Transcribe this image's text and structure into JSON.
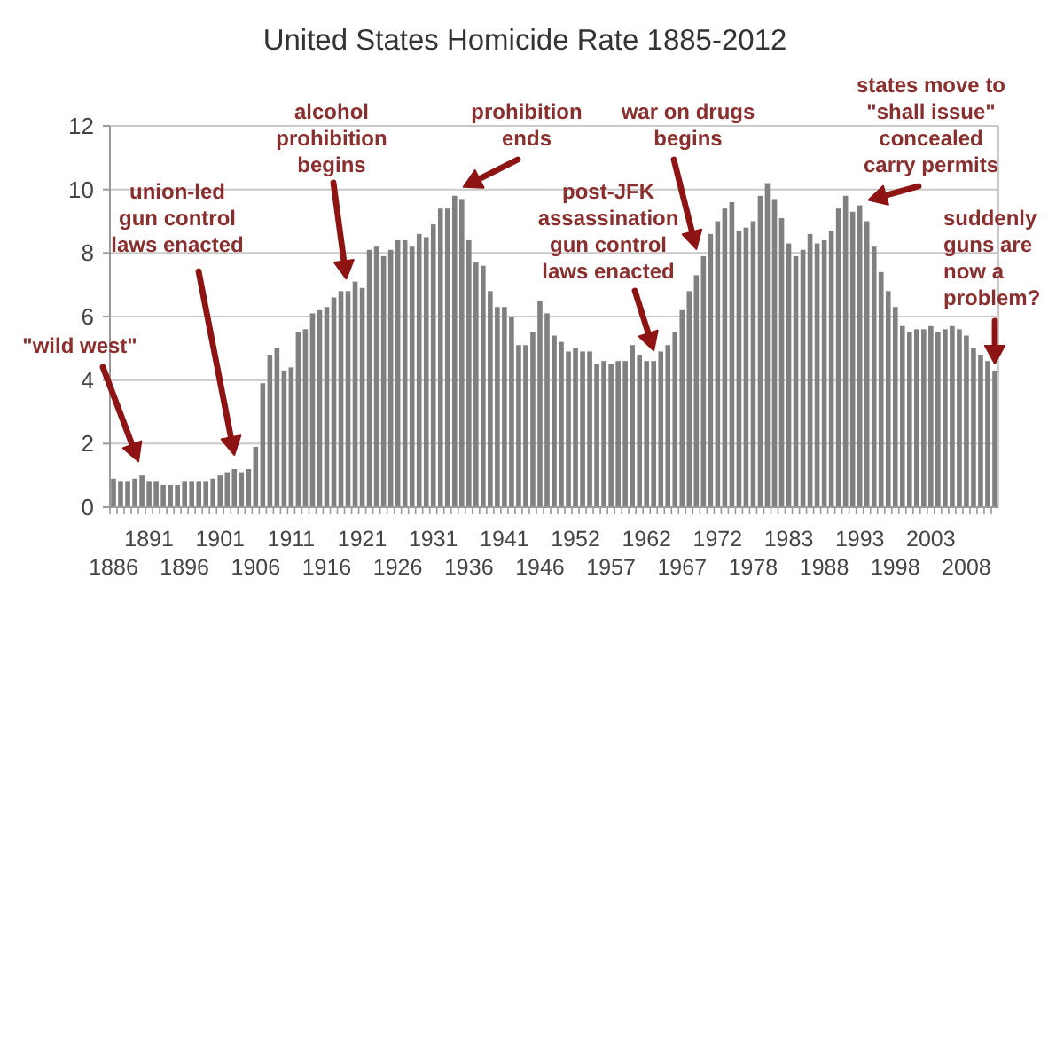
{
  "chart_data": {
    "type": "bar",
    "title": "United States Homicide Rate 1885-2012",
    "categories": [
      "1886",
      null,
      null,
      null,
      null,
      "1891",
      null,
      null,
      null,
      null,
      "1896",
      null,
      null,
      null,
      null,
      "1901",
      null,
      null,
      null,
      null,
      "1906",
      null,
      null,
      null,
      null,
      "1911",
      null,
      null,
      null,
      null,
      "1916",
      null,
      null,
      null,
      null,
      "1921",
      null,
      null,
      null,
      null,
      "1926",
      null,
      null,
      null,
      null,
      "1931",
      null,
      null,
      null,
      null,
      "1936",
      null,
      null,
      null,
      null,
      "1941",
      null,
      null,
      null,
      null,
      "1946",
      null,
      null,
      null,
      null,
      "1952",
      null,
      null,
      null,
      null,
      "1957",
      null,
      null,
      null,
      null,
      "1962",
      null,
      null,
      null,
      null,
      "1967",
      null,
      null,
      null,
      null,
      "1972",
      null,
      null,
      null,
      null,
      "1978",
      null,
      null,
      null,
      null,
      "1983",
      null,
      null,
      null,
      null,
      "1988",
      null,
      null,
      null,
      null,
      "1993",
      null,
      null,
      null,
      null,
      "1998",
      null,
      null,
      null,
      null,
      "2003",
      null,
      null,
      null,
      null,
      "2008",
      null,
      null,
      null,
      null
    ],
    "values": [
      0.9,
      0.8,
      0.8,
      0.9,
      1.0,
      0.8,
      0.8,
      0.7,
      0.7,
      0.7,
      0.8,
      0.8,
      0.8,
      0.8,
      0.9,
      1.0,
      1.1,
      1.2,
      1.1,
      1.2,
      1.9,
      3.9,
      4.8,
      5.0,
      4.3,
      4.4,
      5.5,
      5.6,
      6.1,
      6.2,
      6.3,
      6.6,
      6.8,
      6.8,
      7.1,
      6.9,
      8.1,
      8.2,
      7.9,
      8.1,
      8.4,
      8.4,
      8.2,
      8.6,
      8.5,
      8.9,
      9.4,
      9.4,
      9.8,
      9.7,
      8.4,
      7.7,
      7.6,
      6.8,
      6.3,
      6.3,
      6.0,
      5.1,
      5.1,
      5.5,
      6.5,
      6.1,
      5.4,
      5.2,
      4.9,
      5.0,
      4.9,
      4.9,
      4.5,
      4.6,
      4.5,
      4.6,
      4.6,
      5.1,
      4.8,
      4.6,
      4.6,
      4.9,
      5.1,
      5.5,
      6.2,
      6.8,
      7.3,
      7.9,
      8.6,
      9.0,
      9.4,
      9.6,
      8.7,
      8.8,
      9.0,
      9.8,
      10.2,
      9.7,
      9.1,
      8.3,
      7.9,
      8.1,
      8.6,
      8.3,
      8.4,
      8.7,
      9.4,
      9.8,
      9.3,
      9.5,
      9.0,
      8.2,
      7.4,
      6.8,
      6.3,
      5.7,
      5.5,
      5.6,
      5.6,
      5.7,
      5.5,
      5.6,
      5.7,
      5.6,
      5.4,
      5.0,
      4.8,
      4.6,
      4.3
    ],
    "color": "#808080",
    "ylim": [
      0,
      12
    ],
    "yticks": [
      0,
      2,
      4,
      6,
      8,
      10,
      12
    ],
    "grid": "y",
    "annotations": [
      "\"wild west\"",
      "union-led\ngun control\nlaws enacted",
      "alcohol\nprohibition\nbegins",
      "prohibition\nends",
      "war on drugs\nbegins",
      "post-JFK\nassassination\ngun control\nlaws enacted",
      "states move to\n\"shall issue\"\nconcealed\ncarry permits",
      "suddenly\nguns are\nnow a\nproblem?"
    ]
  }
}
